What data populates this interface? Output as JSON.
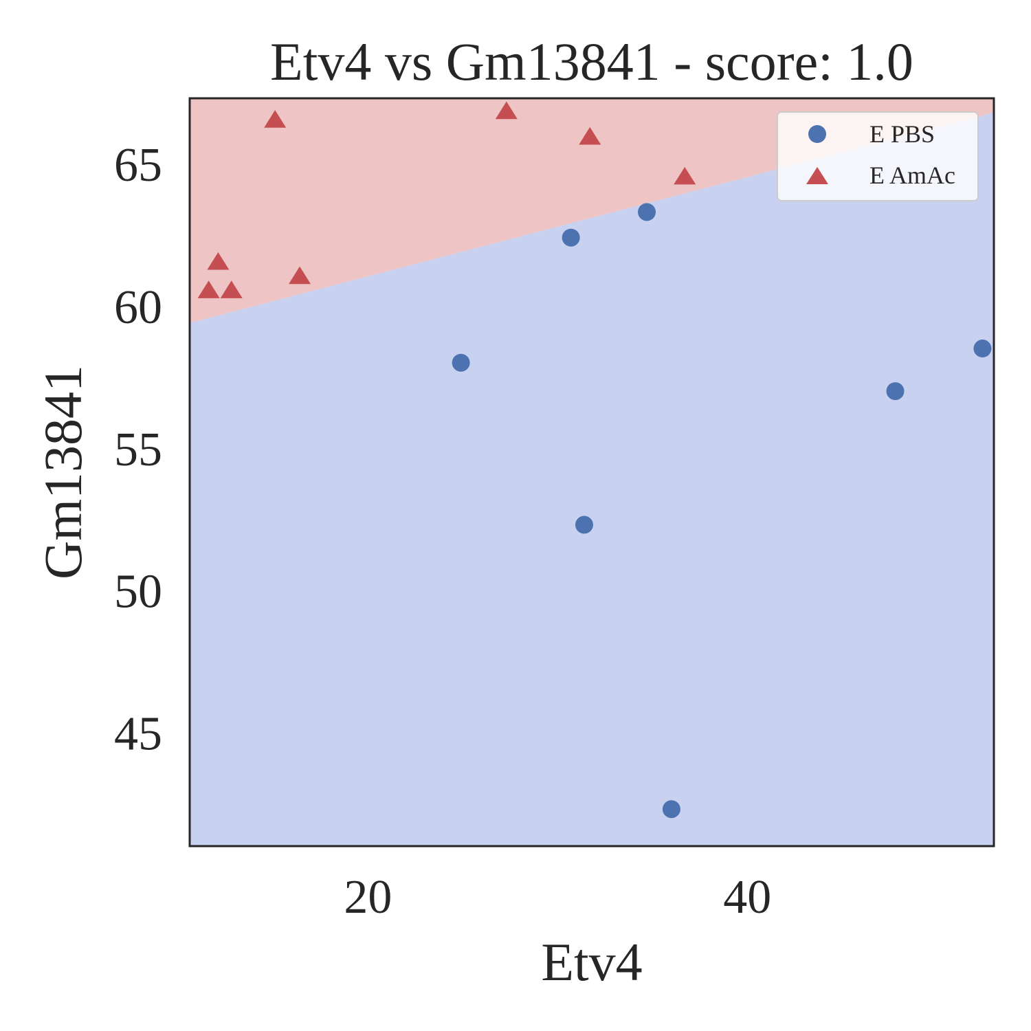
{
  "chart_data": {
    "type": "scatter",
    "title": "Etv4 vs Gm13841 - score: 1.0",
    "xlabel": "Etv4",
    "ylabel": "Gm13841",
    "xlim": [
      10.6,
      53.0
    ],
    "ylim": [
      41.0,
      67.3
    ],
    "xticks": [
      20,
      40
    ],
    "yticks": [
      45,
      50,
      55,
      60,
      65
    ],
    "grid": false,
    "legend_position": "top-right",
    "decision_boundary": {
      "line": [
        [
          10.6,
          59.4
        ],
        [
          53.0,
          66.8
        ]
      ],
      "upper_region_color": "#eec4c4",
      "lower_region_color": "#c9d1f1"
    },
    "series": [
      {
        "name": "E PBS",
        "marker": "circle",
        "color": "#4c72b0",
        "points": [
          [
            24.9,
            58.0
          ],
          [
            30.7,
            62.4
          ],
          [
            31.4,
            52.3
          ],
          [
            34.7,
            63.3
          ],
          [
            36.0,
            42.3
          ],
          [
            47.8,
            57.0
          ],
          [
            52.4,
            58.5
          ]
        ]
      },
      {
        "name": "E AmAc",
        "marker": "triangle",
        "color": "#c44e52",
        "points": [
          [
            11.6,
            60.5
          ],
          [
            12.1,
            61.5
          ],
          [
            12.8,
            60.5
          ],
          [
            15.1,
            66.5
          ],
          [
            16.4,
            61.0
          ],
          [
            27.3,
            66.8
          ],
          [
            31.7,
            65.9
          ],
          [
            36.7,
            64.5
          ]
        ]
      }
    ]
  }
}
